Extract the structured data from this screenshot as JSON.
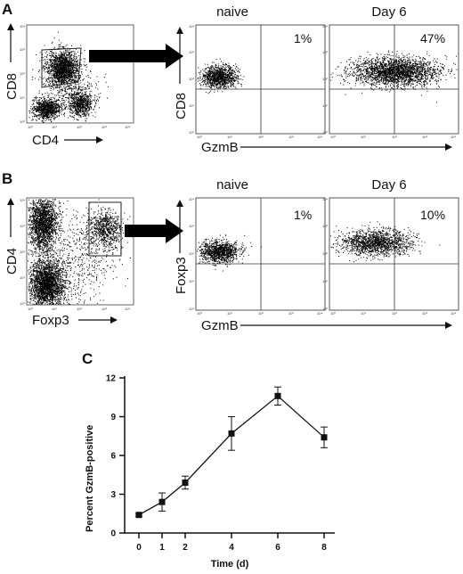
{
  "panels": [
    {
      "letter": "A",
      "gate_plot": {
        "xlabel": "CD4",
        "ylabel": "CD8"
      },
      "plots": [
        {
          "header": "naive",
          "percent": "1%",
          "xlabel": "GzmB",
          "ylabel": "CD8"
        },
        {
          "header": "Day 6",
          "percent": "47%",
          "xlabel": "",
          "ylabel": ""
        }
      ]
    },
    {
      "letter": "B",
      "gate_plot": {
        "xlabel": "Foxp3",
        "ylabel": "CD4"
      },
      "plots": [
        {
          "header": "naive",
          "percent": "1%",
          "xlabel": "GzmB",
          "ylabel": "Foxp3"
        },
        {
          "header": "Day 6",
          "percent": "10%",
          "xlabel": "",
          "ylabel": ""
        }
      ]
    }
  ],
  "flow_ticks": [
    "10⁰",
    "10¹",
    "10²",
    "10³",
    "10⁴"
  ],
  "chart_data": {
    "letter": "C",
    "type": "line",
    "x": [
      0,
      1,
      2,
      4,
      6,
      8
    ],
    "y": [
      1.4,
      2.4,
      3.9,
      7.7,
      10.6,
      7.4
    ],
    "err": [
      0.1,
      0.7,
      0.5,
      1.3,
      0.7,
      0.8
    ],
    "xlabel": "Time (d)",
    "ylabel": "Percent GzmB-positive",
    "xticks": [
      0,
      1,
      2,
      4,
      6,
      8
    ],
    "yticks": [
      0,
      3,
      6,
      9,
      12
    ],
    "ytick_labels": [
      "0",
      "3",
      "6",
      "9",
      "12"
    ],
    "ylim": [
      0,
      12
    ],
    "grid": false,
    "marker": "square"
  }
}
